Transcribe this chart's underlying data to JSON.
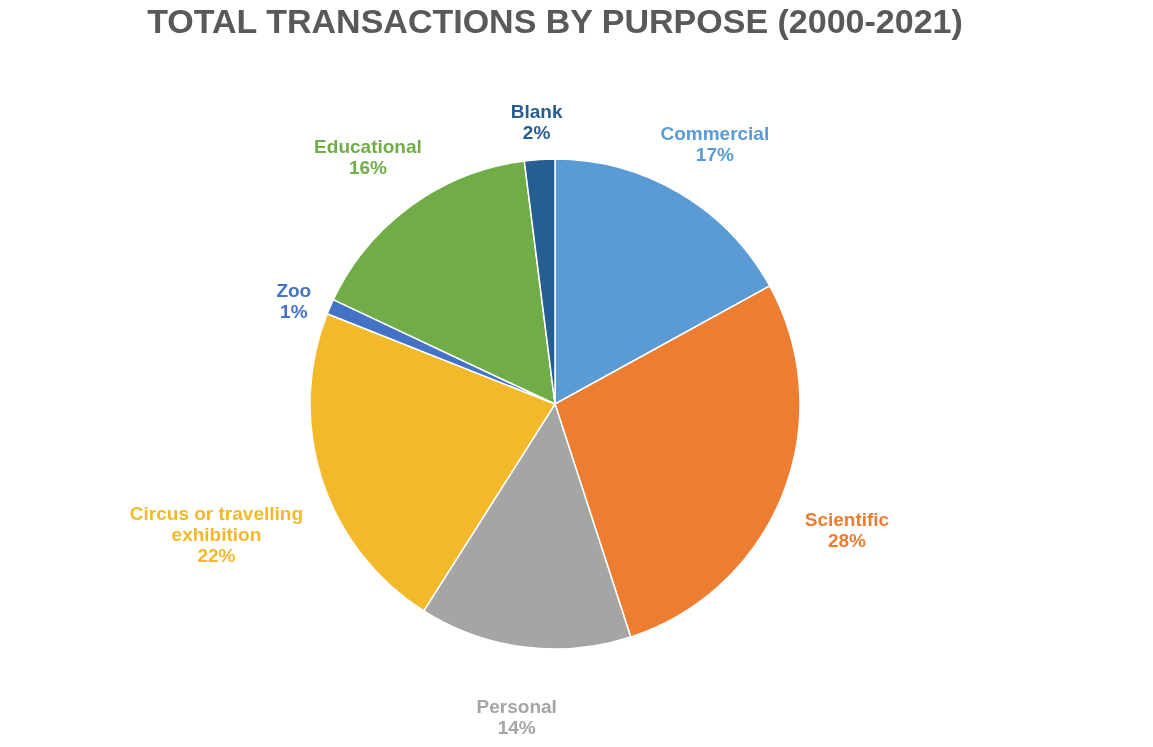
{
  "chart_data": {
    "type": "pie",
    "title": "TOTAL TRANSACTIONS BY PURPOSE (2000-2021)",
    "categories": [
      "Commercial",
      "Scientific",
      "Personal",
      "Circus or travelling exhibition",
      "Zoo",
      "Educational",
      "Blank"
    ],
    "values": [
      17,
      28,
      14,
      22,
      1,
      16,
      2
    ],
    "colors": [
      "#5b9bd5",
      "#ed7d31",
      "#a5a5a5",
      "#f4b92a",
      "#4472c4",
      "#70ad47",
      "#255e91"
    ],
    "value_labels": [
      "17%",
      "28%",
      "14%",
      "22%",
      "1%",
      "16%",
      "2%"
    ],
    "legend": false
  }
}
